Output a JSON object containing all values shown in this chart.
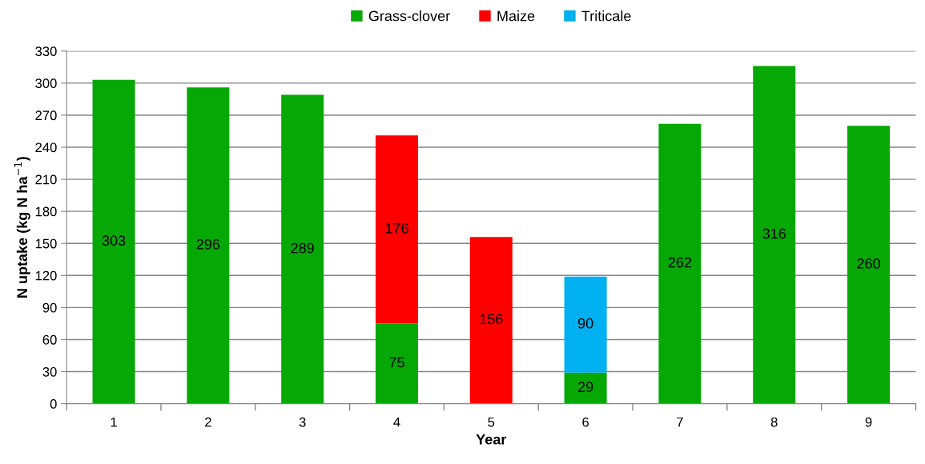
{
  "chart_data": {
    "type": "bar",
    "stacked": true,
    "xlabel": "Year",
    "ylabel": "N uptake (kg N ha$^{−1}$)",
    "categories": [
      "1",
      "2",
      "3",
      "4",
      "5",
      "6",
      "7",
      "8",
      "9"
    ],
    "series": [
      {
        "name": "Grass-clover",
        "color": "#06a806",
        "values": [
          303,
          296,
          289,
          75,
          null,
          29,
          262,
          316,
          260
        ]
      },
      {
        "name": "Maize",
        "color": "#ff0000",
        "values": [
          null,
          null,
          null,
          176,
          156,
          null,
          null,
          null,
          null
        ]
      },
      {
        "name": "Triticale",
        "color": "#00b0f0",
        "values": [
          null,
          null,
          null,
          null,
          null,
          90,
          null,
          null,
          null
        ]
      }
    ],
    "ylim": [
      0,
      330
    ],
    "yticks": [
      0,
      30,
      60,
      90,
      120,
      150,
      180,
      210,
      240,
      270,
      300,
      330
    ],
    "grid": "y",
    "legend": "top",
    "data_labels": true
  }
}
